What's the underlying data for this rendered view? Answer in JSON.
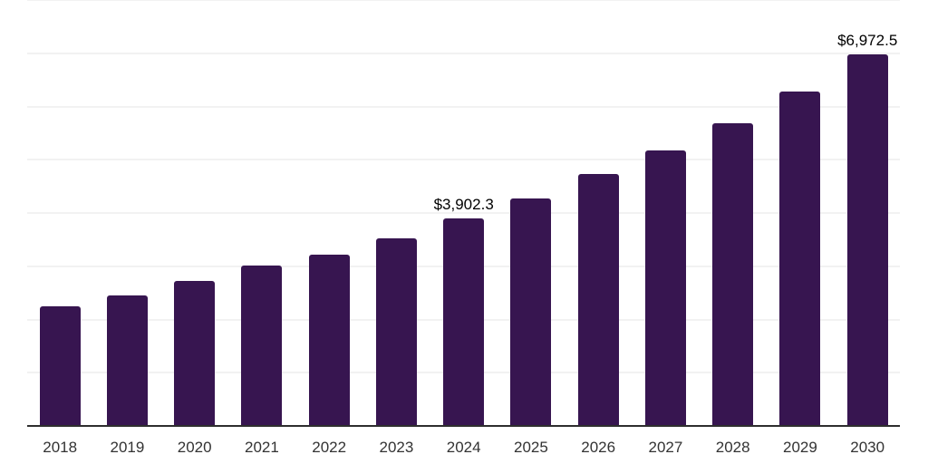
{
  "chart_data": {
    "type": "bar",
    "title": "",
    "xlabel": "",
    "ylabel": "",
    "categories": [
      "2018",
      "2019",
      "2020",
      "2021",
      "2022",
      "2023",
      "2024",
      "2025",
      "2026",
      "2027",
      "2028",
      "2029",
      "2030"
    ],
    "values": [
      2240,
      2450,
      2720,
      3005,
      3210,
      3530,
      3902.3,
      4280,
      4725,
      5180,
      5690,
      6285,
      6972.5
    ],
    "annotations": [
      {
        "category": "2024",
        "text": "$3,902.3"
      },
      {
        "category": "2030",
        "text": "$6,972.5"
      }
    ],
    "ylim": [
      0,
      8000
    ],
    "gridline_step": 1000,
    "grid": true,
    "y_tick_labels_visible": false,
    "legend_position": "none",
    "colors": {
      "bar": "#371550",
      "gridline": "#F2F2F2",
      "axis_line": "#2E2E2E",
      "x_tick_label": "#333333",
      "data_label": "#000000",
      "background": "#FFFFFF"
    }
  }
}
